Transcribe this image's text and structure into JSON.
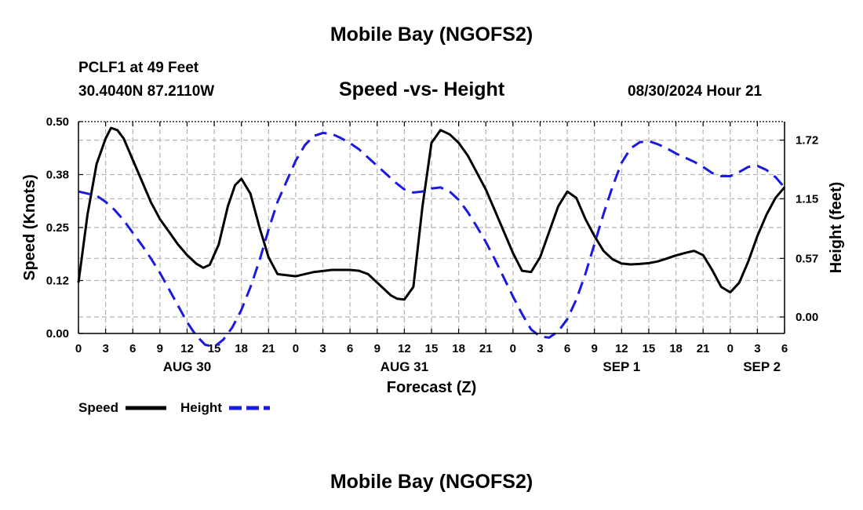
{
  "header": {
    "title": "Mobile Bay (NGOFS2)",
    "station": "PCLF1 at 49 Feet",
    "coords": "30.4040N  87.2110W",
    "subtitle": "Speed -vs- Height",
    "timestamp": "08/30/2024 Hour 21"
  },
  "footer": {
    "title": "Mobile Bay (NGOFS2)"
  },
  "chart_data": {
    "type": "line",
    "title": "Speed -vs- Height",
    "xlabel": "Forecast (Z)",
    "ylabel": "Speed (Knots)",
    "y2label": "Height (feet)",
    "xlim": [
      0,
      78
    ],
    "ylim": [
      0.0,
      0.5
    ],
    "y2lim": [
      -0.16,
      1.9
    ],
    "x_ticks": [
      0,
      3,
      6,
      9,
      12,
      15,
      18,
      21,
      24,
      27,
      30,
      33,
      36,
      39,
      42,
      45,
      48,
      51,
      54,
      57,
      60,
      63,
      66,
      69,
      72,
      75,
      78
    ],
    "x_tick_labels": [
      "0",
      "3",
      "6",
      "9",
      "12",
      "15",
      "18",
      "21",
      "0",
      "3",
      "6",
      "9",
      "12",
      "15",
      "18",
      "21",
      "0",
      "3",
      "6",
      "9",
      "12",
      "15",
      "18",
      "21",
      "0",
      "3",
      "6"
    ],
    "date_labels": [
      {
        "x": 12,
        "label": "AUG 30"
      },
      {
        "x": 36,
        "label": "AUG 31"
      },
      {
        "x": 60,
        "label": "SEP 1"
      },
      {
        "x": 75.5,
        "label": "SEP 2"
      }
    ],
    "y_ticks": [
      0.0,
      0.125,
      0.25,
      0.375,
      0.5
    ],
    "y_tick_labels": [
      "0.00",
      "0.12",
      "0.25",
      "0.38",
      "0.50"
    ],
    "y2_ticks": [
      0.0,
      0.57,
      1.15,
      1.72
    ],
    "y2_tick_labels": [
      "0.00",
      "0.57",
      "1.15",
      "1.72"
    ],
    "grid": true,
    "legend": [
      {
        "name": "Speed",
        "color": "#000000",
        "dash": "solid"
      },
      {
        "name": "Height",
        "color": "#1a1ae0",
        "dash": "dashed"
      }
    ],
    "series": [
      {
        "name": "Speed",
        "axis": "left",
        "color": "#000000",
        "x": [
          0,
          1,
          2,
          3,
          3.6,
          4.3,
          5,
          6,
          7,
          8,
          9,
          10,
          11,
          12,
          13,
          13.8,
          14.5,
          15.5,
          16.5,
          17.3,
          18,
          19,
          20,
          21,
          22,
          24,
          26,
          28,
          30,
          31,
          32,
          33,
          34.5,
          35.2,
          36,
          37,
          38,
          39,
          40,
          41,
          42,
          43,
          44,
          45,
          46,
          47,
          48,
          49,
          50,
          51,
          52,
          53,
          54,
          55,
          56,
          57,
          58,
          59,
          60,
          61,
          62,
          63,
          64,
          65,
          66,
          67,
          68,
          69,
          70,
          71,
          72,
          73,
          74,
          75,
          76,
          77,
          78
        ],
        "values": [
          0.12,
          0.28,
          0.4,
          0.46,
          0.485,
          0.48,
          0.46,
          0.41,
          0.36,
          0.31,
          0.27,
          0.24,
          0.21,
          0.185,
          0.165,
          0.155,
          0.162,
          0.21,
          0.3,
          0.35,
          0.365,
          0.33,
          0.25,
          0.18,
          0.14,
          0.135,
          0.145,
          0.15,
          0.15,
          0.148,
          0.14,
          0.12,
          0.09,
          0.082,
          0.08,
          0.11,
          0.3,
          0.45,
          0.48,
          0.47,
          0.45,
          0.42,
          0.38,
          0.34,
          0.29,
          0.24,
          0.19,
          0.148,
          0.145,
          0.18,
          0.24,
          0.3,
          0.335,
          0.32,
          0.27,
          0.23,
          0.195,
          0.175,
          0.165,
          0.163,
          0.164,
          0.166,
          0.17,
          0.177,
          0.184,
          0.19,
          0.195,
          0.185,
          0.15,
          0.11,
          0.097,
          0.12,
          0.17,
          0.23,
          0.28,
          0.32,
          0.345
        ]
      },
      {
        "name": "Height",
        "axis": "right",
        "color": "#1a1ae0",
        "x": [
          0,
          2,
          3,
          4,
          5,
          6,
          7,
          8,
          9,
          10,
          11,
          12,
          13,
          14,
          15,
          16,
          17,
          18,
          19,
          20,
          21,
          22,
          24,
          25,
          26,
          27,
          28,
          29,
          30,
          31,
          32,
          33,
          34,
          35,
          36,
          37,
          38,
          39,
          40,
          41,
          42,
          43,
          44,
          45,
          46,
          47,
          48,
          49,
          50,
          51,
          52,
          53,
          54,
          55,
          56,
          57,
          58,
          59,
          60,
          61,
          62,
          63,
          64,
          65,
          66,
          67,
          68,
          69,
          70,
          71,
          72,
          73,
          74,
          75,
          76,
          77,
          78
        ],
        "values": [
          1.22,
          1.18,
          1.12,
          1.04,
          0.94,
          0.82,
          0.7,
          0.57,
          0.43,
          0.27,
          0.11,
          -0.05,
          -0.18,
          -0.27,
          -0.29,
          -0.22,
          -0.1,
          0.07,
          0.29,
          0.55,
          0.85,
          1.12,
          1.52,
          1.67,
          1.76,
          1.79,
          1.78,
          1.74,
          1.69,
          1.63,
          1.55,
          1.47,
          1.39,
          1.31,
          1.24,
          1.21,
          1.22,
          1.25,
          1.26,
          1.22,
          1.14,
          1.02,
          0.88,
          0.73,
          0.56,
          0.38,
          0.2,
          0.03,
          -0.12,
          -0.19,
          -0.2,
          -0.14,
          -0.02,
          0.17,
          0.42,
          0.71,
          1.0,
          1.27,
          1.5,
          1.64,
          1.7,
          1.71,
          1.68,
          1.64,
          1.59,
          1.55,
          1.51,
          1.46,
          1.4,
          1.37,
          1.37,
          1.41,
          1.46,
          1.47,
          1.43,
          1.36,
          1.26
        ]
      }
    ]
  }
}
